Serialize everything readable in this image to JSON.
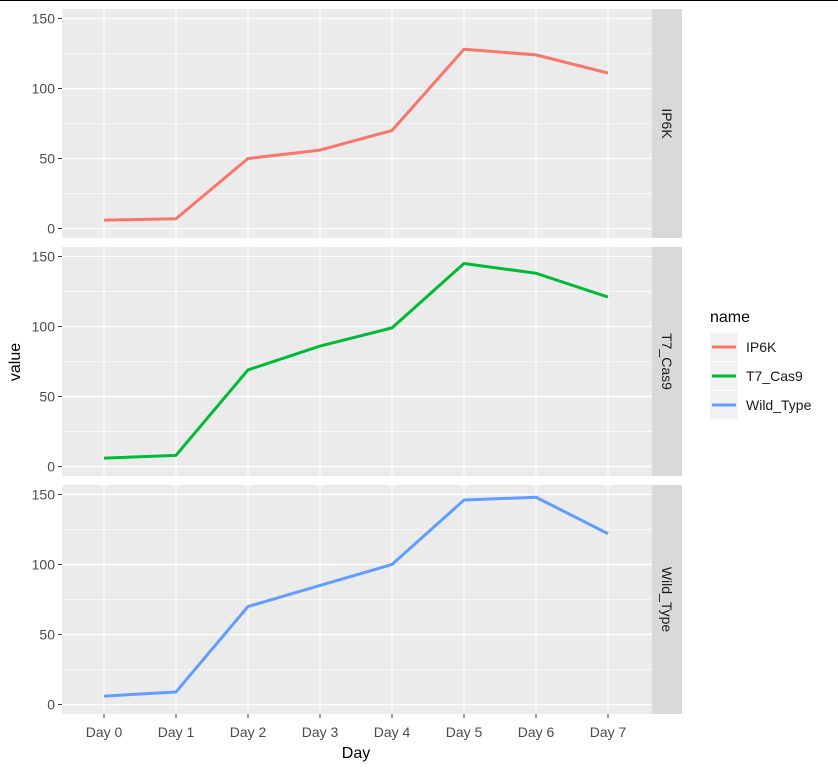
{
  "chart_data": {
    "type": "line",
    "facet": "rows",
    "xlabel": "Day",
    "ylabel": "value",
    "categories": [
      "Day 0",
      "Day 1",
      "Day 2",
      "Day 3",
      "Day 4",
      "Day 5",
      "Day 6",
      "Day 7"
    ],
    "ylim": [
      0,
      150
    ],
    "yticks": [
      0,
      50,
      100,
      150
    ],
    "grid": true,
    "legend_title": "name",
    "legend_position": "right",
    "series": [
      {
        "name": "IP6K",
        "color": "#f8766d",
        "values": [
          6,
          7,
          50,
          56,
          70,
          128,
          124,
          111
        ]
      },
      {
        "name": "T7_Cas9",
        "color": "#00ba38",
        "values": [
          6,
          8,
          69,
          86,
          99,
          145,
          138,
          121
        ]
      },
      {
        "name": "Wild_Type",
        "color": "#619cff",
        "values": [
          6,
          9,
          70,
          85,
          100,
          146,
          148,
          122
        ]
      }
    ]
  }
}
